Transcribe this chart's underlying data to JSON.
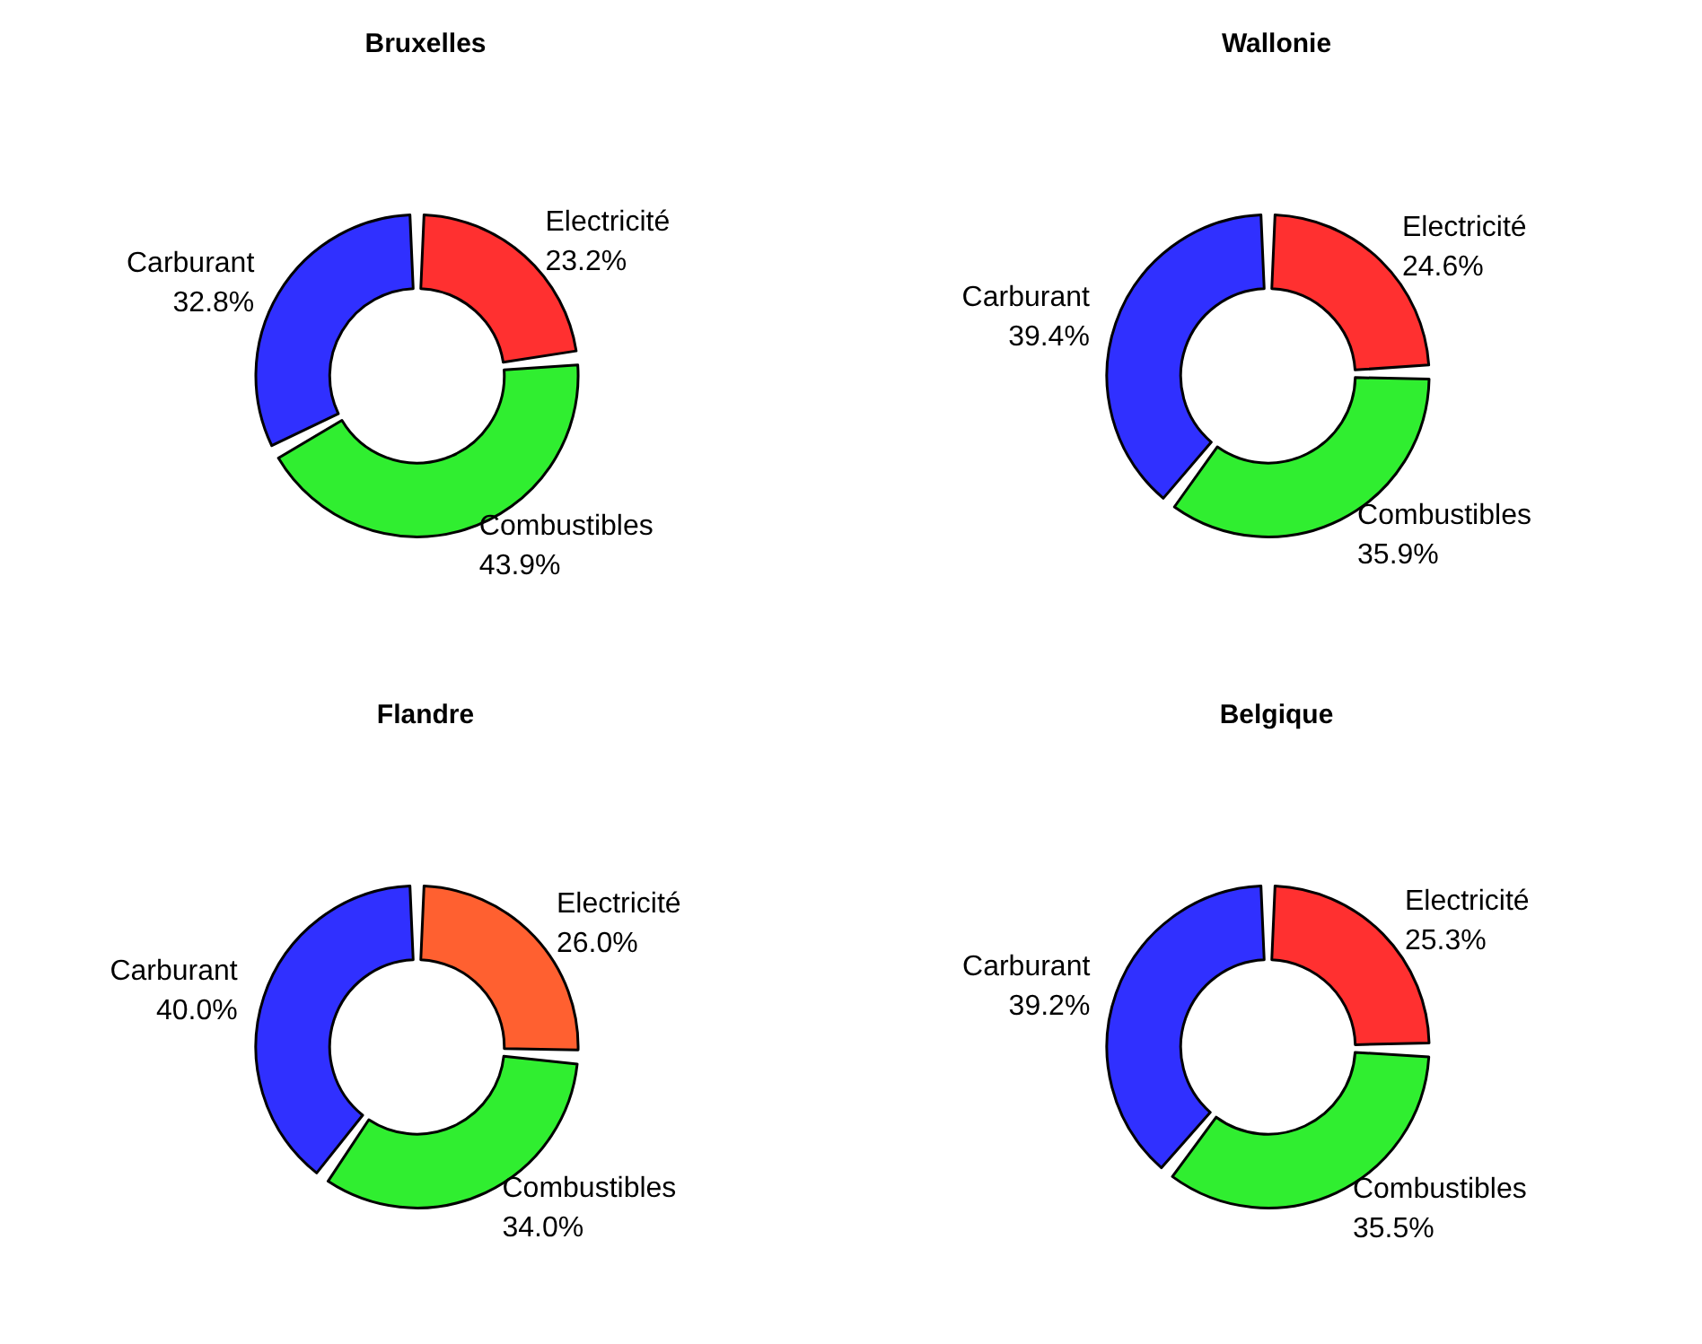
{
  "chart_data": [
    {
      "type": "donut",
      "title": "Bruxelles",
      "categories": [
        "Electricité",
        "Combustibles",
        "Carburant"
      ],
      "values": [
        23.2,
        43.9,
        32.8
      ],
      "value_labels": [
        "23.2%",
        "43.9%",
        "32.8%"
      ],
      "colors": [
        "#ff3030",
        "#30ee30",
        "#3030ff"
      ],
      "legend": false
    },
    {
      "type": "donut",
      "title": "Wallonie",
      "categories": [
        "Electricité",
        "Combustibles",
        "Carburant"
      ],
      "values": [
        24.6,
        35.9,
        39.4
      ],
      "value_labels": [
        "24.6%",
        "35.9%",
        "39.4%"
      ],
      "colors": [
        "#ff3030",
        "#30ee30",
        "#3030ff"
      ],
      "legend": false
    },
    {
      "type": "donut",
      "title": "Flandre",
      "categories": [
        "Electricité",
        "Combustibles",
        "Carburant"
      ],
      "values": [
        26.0,
        34.0,
        40.0
      ],
      "value_labels": [
        "26.0%",
        "34.0%",
        "40.0%"
      ],
      "colors": [
        "#ff6030",
        "#30ee30",
        "#3030ff"
      ],
      "legend": false
    },
    {
      "type": "donut",
      "title": "Belgique",
      "categories": [
        "Electricité",
        "Combustibles",
        "Carburant"
      ],
      "values": [
        25.3,
        35.5,
        39.2
      ],
      "value_labels": [
        "25.3%",
        "35.5%",
        "39.2%"
      ],
      "colors": [
        "#ff3030",
        "#30ee30",
        "#3030ff"
      ],
      "legend": false
    }
  ]
}
